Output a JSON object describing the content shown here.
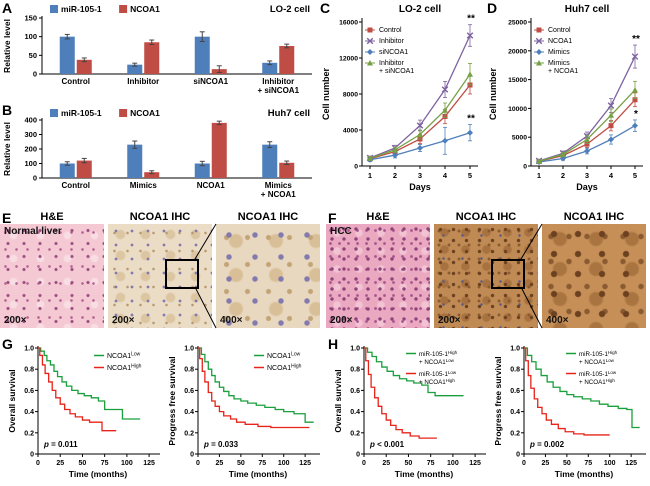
{
  "panels": {
    "a": "A",
    "b": "B",
    "c": "C",
    "d": "D",
    "e": "E",
    "f": "F",
    "g": "G",
    "h": "H"
  },
  "colors": {
    "mir_blue": "#4f7fba",
    "ncoa1_red": "#bf4c45",
    "purple": "#7e63a1",
    "green": "#76a145",
    "km_green": "#19a03c",
    "km_red": "#e82318"
  },
  "chart_data": [
    {
      "id": "A",
      "type": "bar",
      "title": "LO-2 cell",
      "ylabel": "Relative level",
      "ylim": [
        0,
        150
      ],
      "yticks": [
        0,
        50,
        100,
        150
      ],
      "categories": [
        "Control",
        "Inhibitor",
        "siNCOA1",
        "Inhibitor\n+ siNCOA1"
      ],
      "series": [
        {
          "name": "miR-105-1",
          "color": "mir_blue",
          "values": [
            100,
            25,
            100,
            30
          ],
          "errors": [
            6,
            4,
            13,
            5
          ]
        },
        {
          "name": "NCOA1",
          "color": "ncoa1_red",
          "values": [
            38,
            85,
            13,
            75
          ],
          "errors": [
            5,
            6,
            9,
            5
          ]
        }
      ]
    },
    {
      "id": "B",
      "type": "bar",
      "title": "Huh7 cell",
      "ylabel": "Relative level",
      "ylim": [
        0,
        400
      ],
      "yticks": [
        0,
        100,
        200,
        300,
        400
      ],
      "categories": [
        "Control",
        "Mimics",
        "NCOA1",
        "Mimics\n+ NCOA1"
      ],
      "series": [
        {
          "name": "miR-105-1",
          "color": "mir_blue",
          "values": [
            100,
            230,
            100,
            230
          ],
          "errors": [
            12,
            25,
            15,
            20
          ]
        },
        {
          "name": "NCOA1",
          "color": "ncoa1_red",
          "values": [
            120,
            40,
            380,
            105
          ],
          "errors": [
            15,
            10,
            12,
            12
          ]
        }
      ]
    },
    {
      "id": "C",
      "type": "line",
      "title": "LO-2 cell",
      "xlabel": "Days",
      "ylabel": "Cell number",
      "x": [
        1,
        2,
        3,
        4,
        5
      ],
      "ylim": [
        0,
        16000
      ],
      "yticks": [
        0,
        4000,
        8000,
        12000,
        16000
      ],
      "series": [
        {
          "name": "Control",
          "color": "ncoa1_red",
          "marker": "square",
          "values": [
            800,
            1600,
            3000,
            5500,
            9000
          ],
          "errors": [
            200,
            300,
            500,
            800,
            1000
          ]
        },
        {
          "name": "Inhibitor",
          "color": "purple",
          "marker": "x",
          "values": [
            900,
            2000,
            4500,
            8500,
            14500
          ],
          "errors": [
            200,
            300,
            600,
            900,
            1200
          ],
          "annotation": "**"
        },
        {
          "name": "siNCOA1",
          "color": "mir_blue",
          "marker": "diamond",
          "values": [
            700,
            1200,
            2000,
            2800,
            3700
          ],
          "errors": [
            200,
            300,
            400,
            1500,
            900
          ],
          "annotation": "**"
        },
        {
          "name": "Inhibitor\n+ siNCOA1",
          "color": "green",
          "marker": "triangle",
          "values": [
            850,
            1800,
            3500,
            6200,
            10200
          ],
          "errors": [
            200,
            300,
            500,
            800,
            1200
          ]
        }
      ]
    },
    {
      "id": "D",
      "type": "line",
      "title": "Huh7 cell",
      "xlabel": "Days",
      "ylabel": "Cell number",
      "x": [
        1,
        2,
        3,
        4,
        5
      ],
      "ylim": [
        0,
        25000
      ],
      "yticks": [
        0,
        5000,
        10000,
        15000,
        20000,
        25000
      ],
      "series": [
        {
          "name": "Control",
          "color": "ncoa1_red",
          "marker": "square",
          "values": [
            800,
            1800,
            3800,
            7000,
            11500
          ],
          "errors": [
            200,
            300,
            600,
            900,
            1200
          ]
        },
        {
          "name": "NCOA1",
          "color": "purple",
          "marker": "x",
          "values": [
            900,
            2200,
            5200,
            10500,
            19000
          ],
          "errors": [
            200,
            400,
            700,
            1200,
            2000
          ],
          "annotation": "**"
        },
        {
          "name": "Mimics",
          "color": "mir_blue",
          "marker": "diamond",
          "values": [
            700,
            1300,
            2600,
            4600,
            7000
          ],
          "errors": [
            200,
            300,
            500,
            800,
            1000
          ],
          "annotation": "*"
        },
        {
          "name": "Mimics\n+ NCOA1",
          "color": "green",
          "marker": "triangle",
          "values": [
            850,
            2000,
            4600,
            8800,
            13200
          ],
          "errors": [
            200,
            400,
            700,
            1100,
            1500
          ]
        }
      ]
    },
    {
      "id": "G1",
      "type": "km",
      "ylabel": "Overall survival",
      "xlabel": "Time (months)",
      "xlim": [
        0,
        135
      ],
      "xticks": [
        0,
        25,
        50,
        75,
        100,
        125
      ],
      "yticks": [
        0,
        0.2,
        0.4,
        0.6,
        0.8,
        1.0
      ],
      "p_label": "p",
      "p_value": " = 0.011",
      "series": [
        {
          "name": "NCOA1^Low",
          "color": "km_green",
          "points": [
            [
              0,
              1
            ],
            [
              3,
              0.97
            ],
            [
              7,
              0.93
            ],
            [
              10,
              0.88
            ],
            [
              14,
              0.84
            ],
            [
              18,
              0.78
            ],
            [
              22,
              0.73
            ],
            [
              27,
              0.68
            ],
            [
              32,
              0.64
            ],
            [
              38,
              0.6
            ],
            [
              45,
              0.57
            ],
            [
              52,
              0.55
            ],
            [
              60,
              0.53
            ],
            [
              68,
              0.5
            ],
            [
              75,
              0.42
            ],
            [
              88,
              0.42
            ],
            [
              95,
              0.33
            ],
            [
              115,
              0.33
            ]
          ]
        },
        {
          "name": "NCOA1^High",
          "color": "km_red",
          "points": [
            [
              0,
              1
            ],
            [
              2,
              0.93
            ],
            [
              5,
              0.84
            ],
            [
              8,
              0.76
            ],
            [
              12,
              0.68
            ],
            [
              16,
              0.6
            ],
            [
              20,
              0.53
            ],
            [
              25,
              0.47
            ],
            [
              30,
              0.42
            ],
            [
              36,
              0.38
            ],
            [
              42,
              0.35
            ],
            [
              50,
              0.32
            ],
            [
              58,
              0.3
            ],
            [
              65,
              0.3
            ],
            [
              72,
              0.22
            ],
            [
              88,
              0.22
            ]
          ]
        }
      ]
    },
    {
      "id": "G2",
      "type": "km",
      "ylabel": "Progress free survival",
      "xlabel": "Time (months)",
      "xlim": [
        0,
        140
      ],
      "xticks": [
        0,
        25,
        50,
        75,
        100,
        125
      ],
      "yticks": [
        0,
        0.2,
        0.4,
        0.6,
        0.8,
        1.0
      ],
      "p_label": "p",
      "p_value": " = 0.033",
      "series": [
        {
          "name": "NCOA1^Low",
          "color": "km_green",
          "points": [
            [
              0,
              1
            ],
            [
              4,
              0.94
            ],
            [
              8,
              0.87
            ],
            [
              12,
              0.8
            ],
            [
              16,
              0.74
            ],
            [
              20,
              0.68
            ],
            [
              25,
              0.63
            ],
            [
              30,
              0.59
            ],
            [
              36,
              0.55
            ],
            [
              42,
              0.52
            ],
            [
              50,
              0.5
            ],
            [
              58,
              0.48
            ],
            [
              68,
              0.46
            ],
            [
              78,
              0.44
            ],
            [
              90,
              0.42
            ],
            [
              100,
              0.4
            ],
            [
              112,
              0.38
            ],
            [
              125,
              0.3
            ],
            [
              135,
              0.3
            ]
          ]
        },
        {
          "name": "NCOA1^High",
          "color": "km_red",
          "points": [
            [
              0,
              1
            ],
            [
              2,
              0.9
            ],
            [
              5,
              0.78
            ],
            [
              8,
              0.68
            ],
            [
              12,
              0.58
            ],
            [
              16,
              0.5
            ],
            [
              20,
              0.45
            ],
            [
              25,
              0.4
            ],
            [
              30,
              0.36
            ],
            [
              38,
              0.33
            ],
            [
              45,
              0.3
            ],
            [
              55,
              0.28
            ],
            [
              70,
              0.26
            ],
            [
              85,
              0.25
            ],
            [
              100,
              0.25
            ],
            [
              130,
              0.25
            ]
          ]
        }
      ]
    },
    {
      "id": "H1",
      "type": "km",
      "ylabel": "Overall survival",
      "xlabel": "Time (months)",
      "xlim": [
        0,
        135
      ],
      "xticks": [
        0,
        25,
        50,
        75,
        100,
        125
      ],
      "yticks": [
        0,
        0.2,
        0.4,
        0.6,
        0.8,
        1.0
      ],
      "p_label": "p",
      "p_value": " < 0.001",
      "series": [
        {
          "name": "miR-105-1^High\n+ NCOA1^Low",
          "color": "km_green",
          "points": [
            [
              0,
              1
            ],
            [
              4,
              0.96
            ],
            [
              9,
              0.92
            ],
            [
              14,
              0.87
            ],
            [
              20,
              0.82
            ],
            [
              26,
              0.78
            ],
            [
              33,
              0.74
            ],
            [
              40,
              0.71
            ],
            [
              48,
              0.69
            ],
            [
              56,
              0.67
            ],
            [
              65,
              0.65
            ],
            [
              72,
              0.58
            ],
            [
              80,
              0.55
            ],
            [
              95,
              0.55
            ],
            [
              112,
              0.55
            ]
          ]
        },
        {
          "name": "miR-105-1^Low\n+ NCOA1^High",
          "color": "km_red",
          "points": [
            [
              0,
              1
            ],
            [
              2,
              0.88
            ],
            [
              5,
              0.75
            ],
            [
              8,
              0.63
            ],
            [
              12,
              0.53
            ],
            [
              16,
              0.45
            ],
            [
              20,
              0.38
            ],
            [
              25,
              0.32
            ],
            [
              30,
              0.27
            ],
            [
              36,
              0.23
            ],
            [
              43,
              0.2
            ],
            [
              52,
              0.17
            ],
            [
              62,
              0.15
            ],
            [
              82,
              0.15
            ]
          ]
        }
      ]
    },
    {
      "id": "H2",
      "type": "km",
      "ylabel": "Progress free survival",
      "xlabel": "Time (months)",
      "xlim": [
        0,
        140
      ],
      "xticks": [
        0,
        25,
        50,
        75,
        100,
        125
      ],
      "yticks": [
        0,
        0.2,
        0.4,
        0.6,
        0.8,
        1.0
      ],
      "p_label": "p",
      "p_value": " = 0.002",
      "series": [
        {
          "name": "miR-105-1^High\n+ NCOA1^Low",
          "color": "km_green",
          "points": [
            [
              0,
              1
            ],
            [
              4,
              0.93
            ],
            [
              9,
              0.87
            ],
            [
              14,
              0.8
            ],
            [
              20,
              0.74
            ],
            [
              27,
              0.68
            ],
            [
              34,
              0.63
            ],
            [
              42,
              0.59
            ],
            [
              50,
              0.56
            ],
            [
              58,
              0.54
            ],
            [
              68,
              0.52
            ],
            [
              78,
              0.5
            ],
            [
              88,
              0.47
            ],
            [
              98,
              0.45
            ],
            [
              110,
              0.43
            ],
            [
              120,
              0.42
            ],
            [
              126,
              0.25
            ],
            [
              135,
              0.25
            ]
          ]
        },
        {
          "name": "miR-105-1^Low\n+ NCOA1^High",
          "color": "km_red",
          "points": [
            [
              0,
              1
            ],
            [
              2,
              0.88
            ],
            [
              5,
              0.74
            ],
            [
              8,
              0.62
            ],
            [
              12,
              0.52
            ],
            [
              16,
              0.44
            ],
            [
              21,
              0.38
            ],
            [
              26,
              0.32
            ],
            [
              32,
              0.28
            ],
            [
              40,
              0.24
            ],
            [
              48,
              0.21
            ],
            [
              58,
              0.19
            ],
            [
              70,
              0.18
            ],
            [
              100,
              0.18
            ]
          ]
        }
      ]
    }
  ],
  "histology": {
    "E": {
      "columns": [
        "H&E",
        "NCOA1 IHC",
        "NCOA1 IHC"
      ],
      "tissue_label": "Normal liver",
      "magnifications": [
        "200×",
        "200×",
        "400×"
      ]
    },
    "F": {
      "columns": [
        "H&E",
        "NCOA1 IHC",
        "NCOA1 IHC"
      ],
      "tissue_label": "HCC",
      "magnifications": [
        "200×",
        "200×",
        "400×"
      ]
    }
  }
}
